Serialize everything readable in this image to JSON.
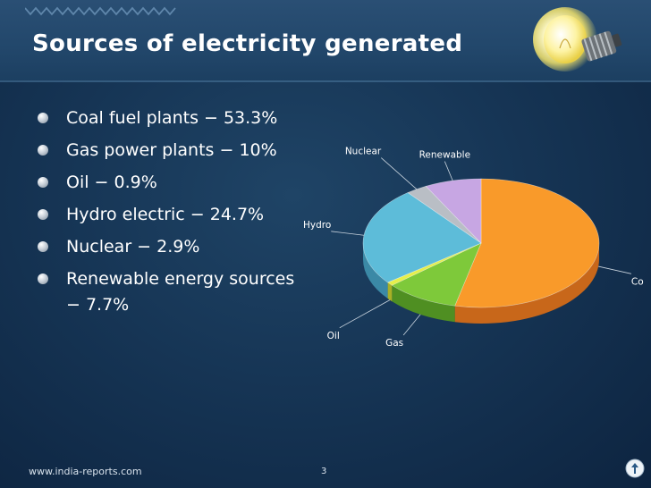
{
  "slide": {
    "title": "Sources of electricity generated",
    "footer_url": "www.india-reports.com",
    "page_number": "3"
  },
  "bullets": [
    "Coal fuel plants − 53.3%",
    "Gas power plants − 10%",
    "Oil − 0.9%",
    "Hydro electric − 24.7%",
    "Nuclear − 2.9%",
    "Renewable energy sources − 7.7%"
  ],
  "chart_data": {
    "type": "pie",
    "style": "3d",
    "categories": [
      "Coal",
      "Gas",
      "Oil",
      "Hydro",
      "Nuclear",
      "Renewable"
    ],
    "values": [
      53.3,
      10,
      0.9,
      24.7,
      2.9,
      7.7
    ],
    "colors": [
      "#f99a2a",
      "#7ec93a",
      "#e6ef4a",
      "#5dbcd9",
      "#b9bec5",
      "#c7a6e3"
    ],
    "side_colors": [
      "#c8671a",
      "#4f8f22",
      "#a9b026",
      "#3b89a6",
      "#868a90",
      "#906cb0"
    ],
    "legend": "none",
    "labels": "outside"
  }
}
